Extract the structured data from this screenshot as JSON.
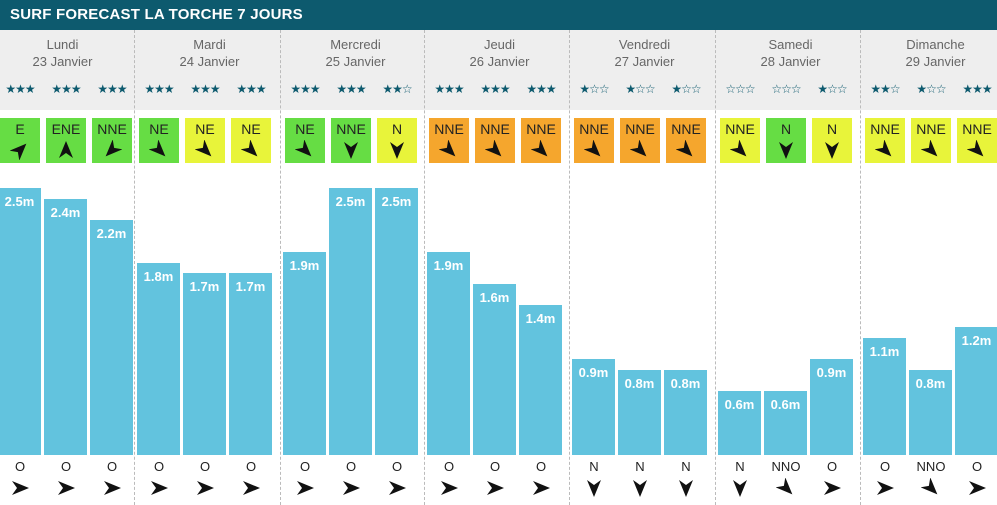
{
  "title": "SURF FORECAST LA TORCHE 7 JOURS",
  "colors": {
    "header": "#0d5a6e",
    "bar": "#62c3de",
    "wind_green": "#66dd44",
    "wind_yellow": "#e8f43a",
    "wind_orange": "#f5a62d"
  },
  "days": [
    {
      "name": "Lundi",
      "date": "23 Janvier"
    },
    {
      "name": "Mardi",
      "date": "24 Janvier"
    },
    {
      "name": "Mercredi",
      "date": "25 Janvier"
    },
    {
      "name": "Jeudi",
      "date": "26 Janvier"
    },
    {
      "name": "Vendredi",
      "date": "27 Janvier"
    },
    {
      "name": "Samedi",
      "date": "28 Janvier"
    },
    {
      "name": "Dimanche",
      "date": "29 Janvier"
    }
  ],
  "chart_data": {
    "type": "bar",
    "unit": "m",
    "ylim": [
      0,
      2.5
    ],
    "periods": [
      {
        "stars": "★★★",
        "wind": "E",
        "wind_color": "green",
        "wind_arrow": "ne",
        "height": 2.5,
        "label": "2.5m",
        "swell": "O",
        "swell_arrow": "e"
      },
      {
        "stars": "★★★",
        "wind": "ENE",
        "wind_color": "green",
        "wind_arrow": "n",
        "height": 2.4,
        "label": "2.4m",
        "swell": "O",
        "swell_arrow": "e"
      },
      {
        "stars": "★★★",
        "wind": "NNE",
        "wind_color": "green",
        "wind_arrow": "sw",
        "height": 2.2,
        "label": "2.2m",
        "swell": "O",
        "swell_arrow": "e"
      },
      {
        "stars": "★★★",
        "wind": "NE",
        "wind_color": "green",
        "wind_arrow": "se",
        "height": 1.8,
        "label": "1.8m",
        "swell": "O",
        "swell_arrow": "e"
      },
      {
        "stars": "★★★",
        "wind": "NE",
        "wind_color": "yellow",
        "wind_arrow": "se",
        "height": 1.7,
        "label": "1.7m",
        "swell": "O",
        "swell_arrow": "e"
      },
      {
        "stars": "★★★",
        "wind": "NE",
        "wind_color": "yellow",
        "wind_arrow": "se",
        "height": 1.7,
        "label": "1.7m",
        "swell": "O",
        "swell_arrow": "e"
      },
      {
        "stars": "★★★",
        "wind": "NE",
        "wind_color": "green",
        "wind_arrow": "se",
        "height": 1.9,
        "label": "1.9m",
        "swell": "O",
        "swell_arrow": "e"
      },
      {
        "stars": "★★★",
        "wind": "NNE",
        "wind_color": "green",
        "wind_arrow": "s",
        "height": 2.5,
        "label": "2.5m",
        "swell": "O",
        "swell_arrow": "e"
      },
      {
        "stars": "★★☆",
        "wind": "N",
        "wind_color": "yellow",
        "wind_arrow": "s",
        "height": 2.5,
        "label": "2.5m",
        "swell": "O",
        "swell_arrow": "e"
      },
      {
        "stars": "★★★",
        "wind": "NNE",
        "wind_color": "orange",
        "wind_arrow": "se",
        "height": 1.9,
        "label": "1.9m",
        "swell": "O",
        "swell_arrow": "e"
      },
      {
        "stars": "★★★",
        "wind": "NNE",
        "wind_color": "orange",
        "wind_arrow": "se",
        "height": 1.6,
        "label": "1.6m",
        "swell": "O",
        "swell_arrow": "e"
      },
      {
        "stars": "★★★",
        "wind": "NNE",
        "wind_color": "orange",
        "wind_arrow": "se",
        "height": 1.4,
        "label": "1.4m",
        "swell": "O",
        "swell_arrow": "e"
      },
      {
        "stars": "★☆☆",
        "wind": "NNE",
        "wind_color": "orange",
        "wind_arrow": "se",
        "height": 0.9,
        "label": "0.9m",
        "swell": "N",
        "swell_arrow": "s"
      },
      {
        "stars": "★☆☆",
        "wind": "NNE",
        "wind_color": "orange",
        "wind_arrow": "se",
        "height": 0.8,
        "label": "0.8m",
        "swell": "N",
        "swell_arrow": "s"
      },
      {
        "stars": "★☆☆",
        "wind": "NNE",
        "wind_color": "orange",
        "wind_arrow": "se",
        "height": 0.8,
        "label": "0.8m",
        "swell": "N",
        "swell_arrow": "s"
      },
      {
        "stars": "☆☆☆",
        "wind": "NNE",
        "wind_color": "yellow",
        "wind_arrow": "se",
        "height": 0.6,
        "label": "0.6m",
        "swell": "N",
        "swell_arrow": "s"
      },
      {
        "stars": "☆☆☆",
        "wind": "N",
        "wind_color": "green",
        "wind_arrow": "s",
        "height": 0.6,
        "label": "0.6m",
        "swell": "NNO",
        "swell_arrow": "se"
      },
      {
        "stars": "★☆☆",
        "wind": "N",
        "wind_color": "yellow",
        "wind_arrow": "s",
        "height": 0.9,
        "label": "0.9m",
        "swell": "O",
        "swell_arrow": "e"
      },
      {
        "stars": "★★☆",
        "wind": "NNE",
        "wind_color": "yellow",
        "wind_arrow": "se",
        "height": 1.1,
        "label": "1.1m",
        "swell": "O",
        "swell_arrow": "e"
      },
      {
        "stars": "★☆☆",
        "wind": "NNE",
        "wind_color": "yellow",
        "wind_arrow": "se",
        "height": 0.8,
        "label": "0.8m",
        "swell": "NNO",
        "swell_arrow": "se"
      },
      {
        "stars": "★★★",
        "wind": "NNE",
        "wind_color": "yellow",
        "wind_arrow": "se",
        "height": 1.2,
        "label": "1.2m",
        "swell": "O",
        "swell_arrow": "e"
      }
    ]
  }
}
